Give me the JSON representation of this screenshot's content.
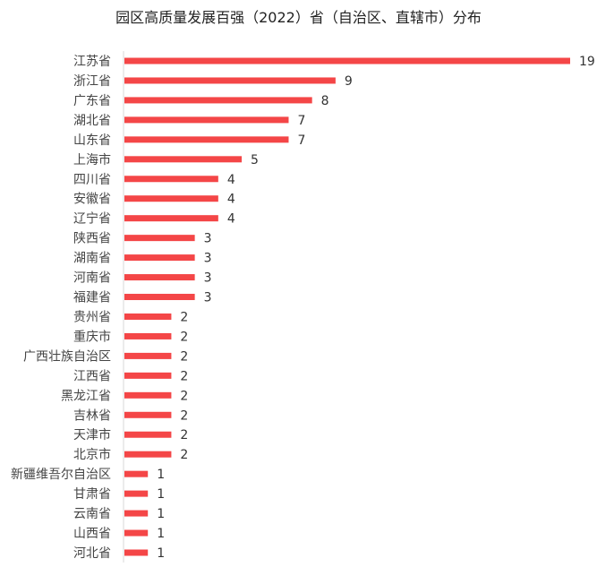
{
  "chart_data": {
    "type": "bar",
    "orientation": "horizontal",
    "title": "园区高质量发展百强（2022）省（自治区、直辖市）分布",
    "categories": [
      "江苏省",
      "浙江省",
      "广东省",
      "湖北省",
      "山东省",
      "上海市",
      "四川省",
      "安徽省",
      "辽宁省",
      "陕西省",
      "湖南省",
      "河南省",
      "福建省",
      "贵州省",
      "重庆市",
      "广西壮族自治区",
      "江西省",
      "黑龙江省",
      "吉林省",
      "天津市",
      "北京市",
      "新疆维吾尔自治区",
      "甘肃省",
      "云南省",
      "山西省",
      "河北省"
    ],
    "values": [
      19,
      9,
      8,
      7,
      7,
      5,
      4,
      4,
      4,
      3,
      3,
      3,
      3,
      2,
      2,
      2,
      2,
      2,
      2,
      2,
      2,
      1,
      1,
      1,
      1,
      1
    ],
    "xlim": [
      0,
      19
    ],
    "bar_color": "#f44647",
    "axis_color": "#d9d9d9",
    "grid": false,
    "legend": "none"
  }
}
